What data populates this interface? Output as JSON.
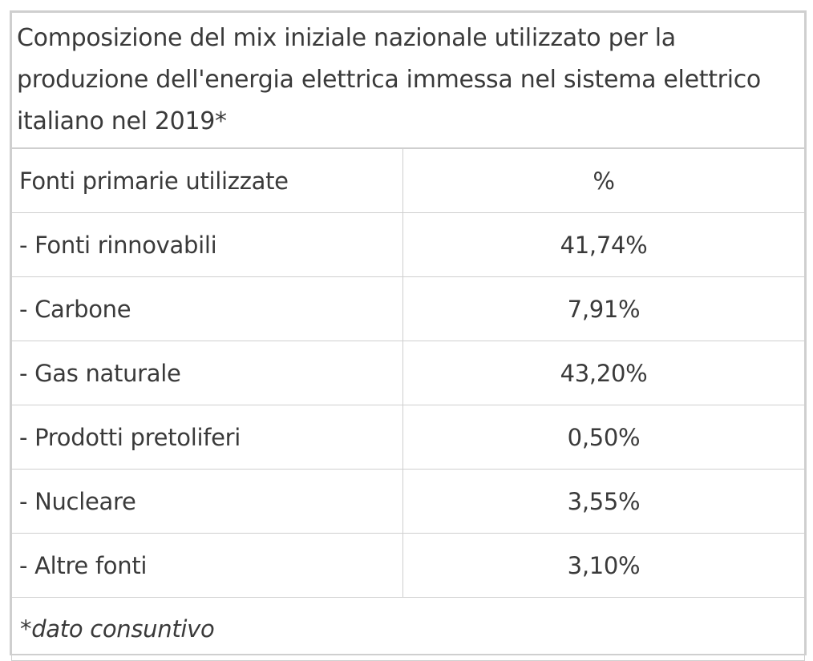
{
  "table": {
    "caption": "Composizione del mix iniziale nazionale utilizzato per la produzione dell'energia elettrica immessa nel sistema elettrico italiano nel 2019*",
    "header": {
      "source_label": "Fonti primarie utilizzate",
      "value_label": "%"
    },
    "rows": [
      {
        "source": "- Fonti rinnovabili",
        "value": "41,74%"
      },
      {
        "source": "- Carbone",
        "value": "7,91%"
      },
      {
        "source": "- Gas naturale",
        "value": "43,20%"
      },
      {
        "source": "- Prodotti pretoliferi",
        "value": "0,50%"
      },
      {
        "source": "- Nucleare",
        "value": "3,55%"
      },
      {
        "source": "- Altre fonti",
        "value": "3,10%"
      }
    ],
    "footnote": "*dato consuntivo"
  }
}
